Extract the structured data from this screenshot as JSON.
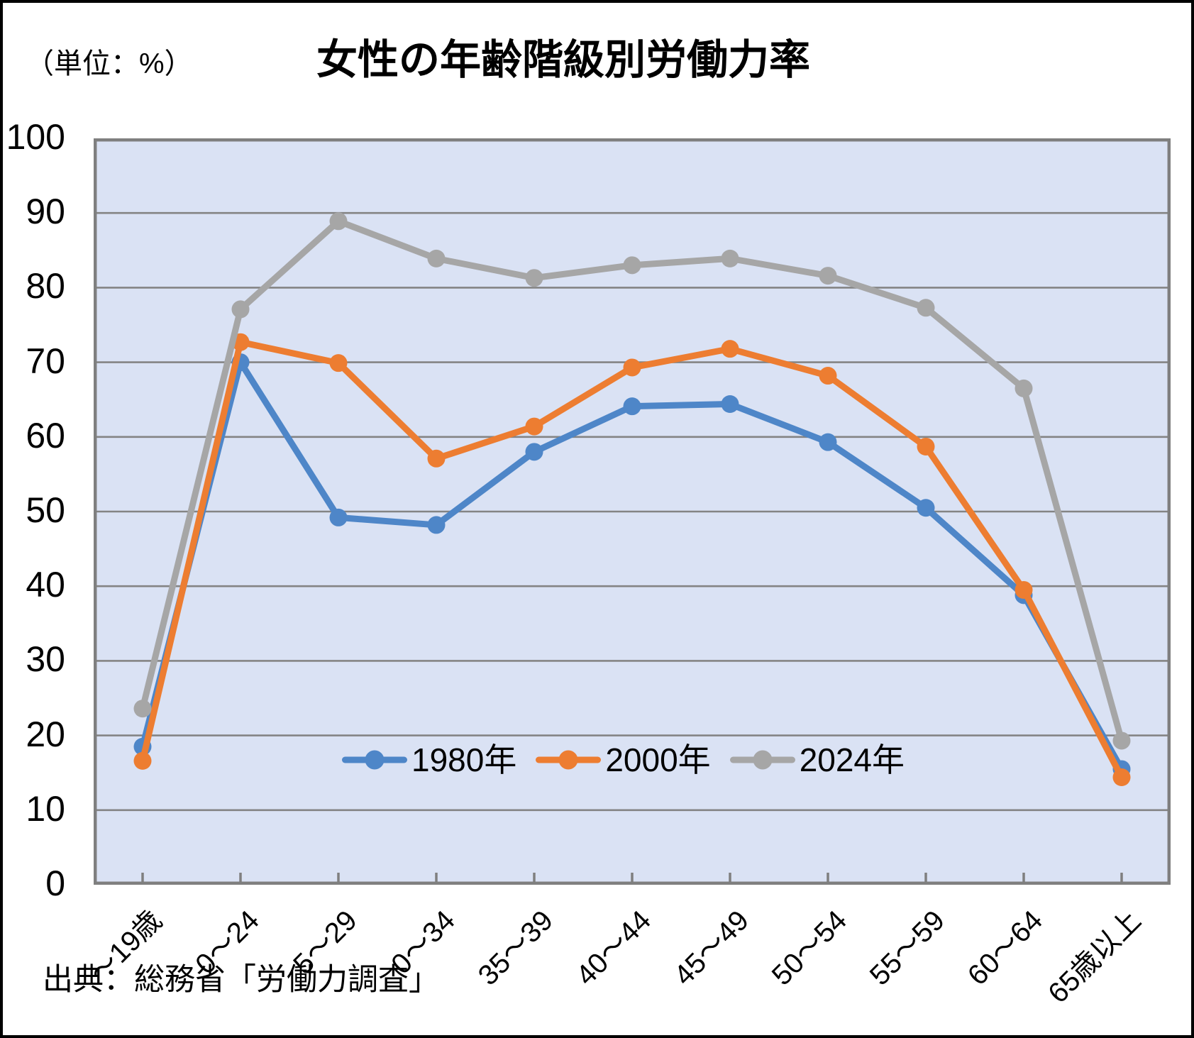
{
  "chart_data": {
    "type": "line",
    "title": "女性の年齢階級別労働力率",
    "unit_label": "（単位：%）",
    "source": "出典：総務省「労働力調査」",
    "categories": [
      "～19歳",
      "0～24",
      "5～29",
      "0～34",
      "35～39",
      "40～44",
      "45～49",
      "50～54",
      "55～59",
      "60～64",
      "65歳以上"
    ],
    "series": [
      {
        "name": "1980年",
        "color": "#4e86c8",
        "values": [
          18.5,
          70.0,
          49.2,
          48.2,
          58.0,
          64.1,
          64.4,
          59.3,
          50.5,
          38.8,
          15.5
        ]
      },
      {
        "name": "2000年",
        "color": "#ed7d31",
        "values": [
          16.6,
          72.7,
          69.9,
          57.1,
          61.4,
          69.3,
          71.8,
          68.2,
          58.7,
          39.5,
          14.4
        ]
      },
      {
        "name": "2024年",
        "color": "#a6a6a6",
        "values": [
          23.6,
          77.1,
          88.9,
          83.9,
          81.3,
          83.0,
          83.9,
          81.6,
          77.3,
          66.5,
          19.3
        ]
      }
    ],
    "ylim": [
      0,
      100
    ],
    "ytick_step": 10,
    "ytick_labels": [
      "0",
      "10",
      "20",
      "30",
      "40",
      "50",
      "60",
      "70",
      "80",
      "90",
      "100"
    ],
    "grid": true,
    "legend_position": "inside-bottom-center",
    "colors": {
      "plot_bg": "#dae2f4",
      "gridline": "#848484",
      "axis_border": "#7f7f7f",
      "text": "#000000"
    }
  }
}
